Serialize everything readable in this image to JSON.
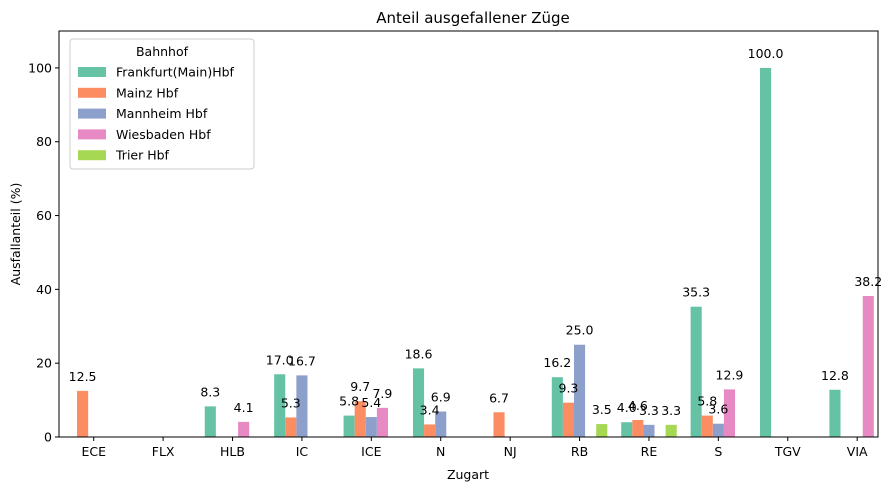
{
  "chart_data": {
    "type": "bar",
    "title": "Anteil ausgefallener Züge",
    "xlabel": "Zugart",
    "ylabel": "Ausfallanteil (%)",
    "ylim": [
      0,
      110
    ],
    "yticks": [
      0,
      20,
      40,
      60,
      80,
      100
    ],
    "grid": false,
    "legend": {
      "title": "Bahnhof",
      "placement": "top-left"
    },
    "categories": [
      "ECE",
      "FLX",
      "HLB",
      "IC",
      "ICE",
      "N",
      "NJ",
      "RB",
      "RE",
      "S",
      "TGV",
      "VIA"
    ],
    "series": [
      {
        "name": "Frankfurt(Main)Hbf",
        "color": "#66c2a5",
        "values": [
          null,
          null,
          8.3,
          17.0,
          5.8,
          18.6,
          null,
          16.2,
          4.0,
          35.3,
          100.0,
          12.8
        ]
      },
      {
        "name": "Mainz Hbf",
        "color": "#fc8d62",
        "values": [
          12.5,
          null,
          null,
          5.3,
          9.7,
          3.4,
          6.7,
          9.3,
          4.6,
          5.8,
          null,
          null
        ]
      },
      {
        "name": "Mannheim Hbf",
        "color": "#8da0cb",
        "values": [
          null,
          null,
          null,
          16.7,
          5.4,
          6.9,
          null,
          25.0,
          3.3,
          3.6,
          null,
          null
        ]
      },
      {
        "name": "Wiesbaden Hbf",
        "color": "#e78ac3",
        "values": [
          null,
          null,
          4.1,
          null,
          7.9,
          null,
          null,
          null,
          null,
          12.9,
          null,
          38.2
        ]
      },
      {
        "name": "Trier Hbf",
        "color": "#a6d854",
        "values": [
          null,
          null,
          null,
          null,
          null,
          null,
          null,
          3.5,
          3.3,
          null,
          null,
          null
        ]
      }
    ]
  }
}
